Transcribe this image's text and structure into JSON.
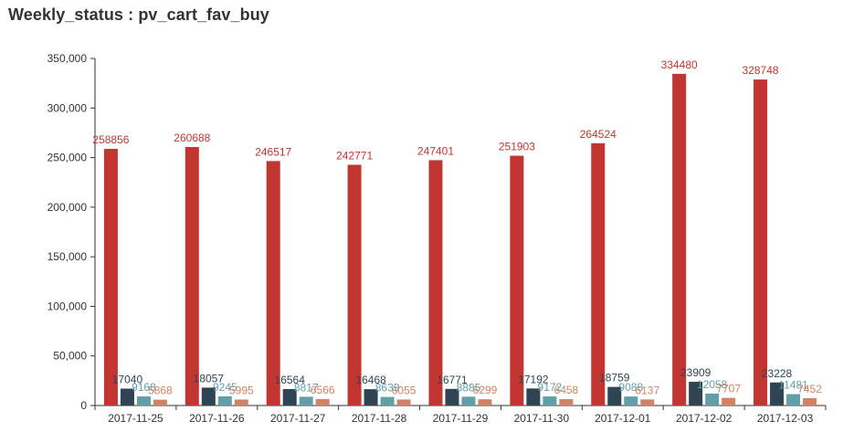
{
  "title": "Weekly_status : pv_cart_fav_buy",
  "chart_data": {
    "type": "bar",
    "title": "Weekly_status : pv_cart_fav_buy",
    "xlabel": "",
    "ylabel": "",
    "ylim": [
      0,
      350000
    ],
    "yticks": [
      "0",
      "50,000",
      "100,000",
      "150,000",
      "200,000",
      "250,000",
      "300,000",
      "350,000"
    ],
    "grid": false,
    "categories": [
      "2017-11-25",
      "2017-11-26",
      "2017-11-27",
      "2017-11-28",
      "2017-11-29",
      "2017-11-30",
      "2017-12-01",
      "2017-12-02",
      "2017-12-03"
    ],
    "series": [
      {
        "color": "#c23531",
        "values": [
          258856,
          260688,
          246517,
          242771,
          247401,
          251903,
          264524,
          334480,
          328748
        ]
      },
      {
        "color": "#2f4554",
        "values": [
          17040,
          18057,
          16564,
          16468,
          16771,
          17192,
          18759,
          23909,
          23228
        ]
      },
      {
        "color": "#61a0a8",
        "values": [
          9168,
          9245,
          8817,
          8639,
          8885,
          9172,
          9088,
          12058,
          11481
        ]
      },
      {
        "color": "#d48265",
        "values": [
          5868,
          5995,
          6566,
          6055,
          6299,
          6458,
          6137,
          7707,
          7452
        ]
      }
    ]
  }
}
